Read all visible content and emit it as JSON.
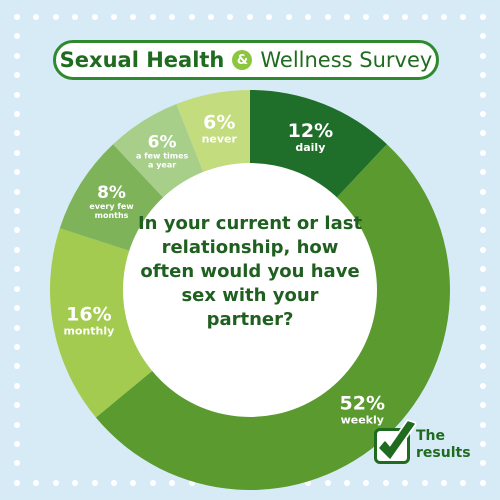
{
  "header": {
    "title_part1": "Sexual Health",
    "ampersand": "&",
    "title_part2": "Wellness Survey"
  },
  "question": "In your current or last relationship, how often would you have sex with your partner?",
  "badge": {
    "line1": "The",
    "line2": "results"
  },
  "chart_data": {
    "type": "pie",
    "donut": true,
    "title": "Sexual Health & Wellness Survey",
    "slices": [
      {
        "label": "daily",
        "value": 12,
        "display": "12%",
        "color": "#1f6e2a",
        "label_lines": [
          "daily"
        ]
      },
      {
        "label": "weekly",
        "value": 52,
        "display": "52%",
        "color": "#5a9a2e",
        "label_lines": [
          "weekly"
        ]
      },
      {
        "label": "monthly",
        "value": 16,
        "display": "16%",
        "color": "#a3cb4f",
        "label_lines": [
          "monthly"
        ]
      },
      {
        "label": "every few months",
        "value": 8,
        "display": "8%",
        "color": "#7fb35a",
        "label_lines": [
          "every few",
          "months"
        ]
      },
      {
        "label": "a few times a year",
        "value": 6,
        "display": "6%",
        "color": "#a8cf8a",
        "label_lines": [
          "a few times",
          "a year"
        ]
      },
      {
        "label": "never",
        "value": 6,
        "display": "6%",
        "color": "#c2dc7e",
        "label_lines": [
          "never"
        ]
      }
    ],
    "colors": {
      "background": "#d6ebf6",
      "border_green": "#2f8a2f",
      "question_text": "#1f5f1f"
    }
  }
}
